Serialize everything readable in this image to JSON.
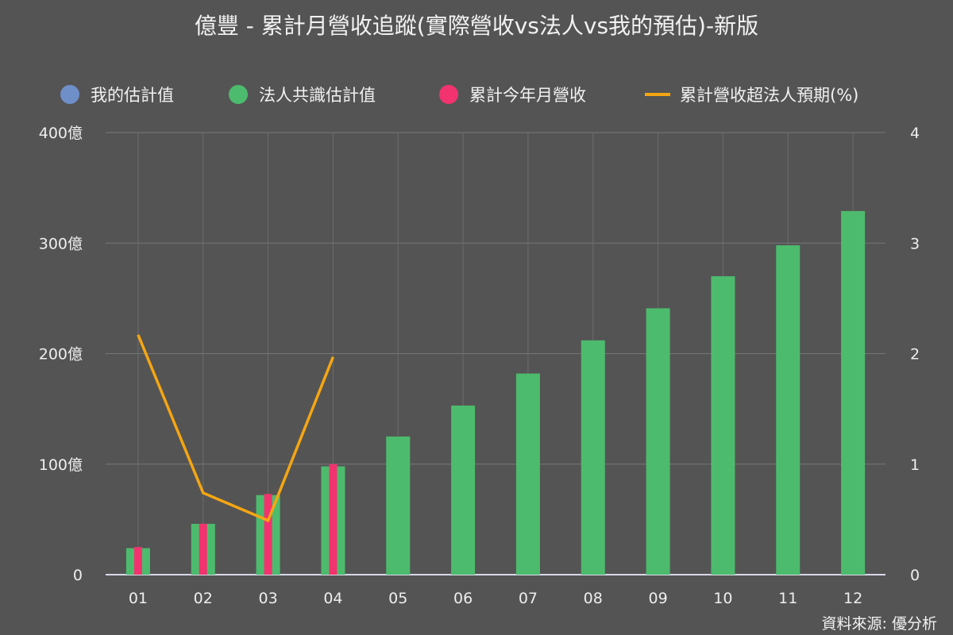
{
  "chart_data": {
    "type": "bar",
    "title": "億豐 - 累計月營收追蹤(實際營收vs法人vs我的預估)-新版",
    "categories": [
      "01",
      "02",
      "03",
      "04",
      "05",
      "06",
      "07",
      "08",
      "09",
      "10",
      "11",
      "12"
    ],
    "series": [
      {
        "name": "我的估計值",
        "type": "bar",
        "axis": "left",
        "values": [
          null,
          null,
          null,
          null,
          null,
          null,
          null,
          null,
          null,
          null,
          null,
          null
        ],
        "color": "#6f8fc9"
      },
      {
        "name": "法人共識估計值",
        "type": "bar",
        "axis": "left",
        "values": [
          24,
          46,
          72,
          98,
          125,
          153,
          182,
          212,
          241,
          270,
          298,
          329
        ],
        "color": "#4dbb6d"
      },
      {
        "name": "累計今年月營收",
        "type": "bar",
        "axis": "left",
        "values": [
          25,
          46,
          73,
          100,
          null,
          null,
          null,
          null,
          null,
          null,
          null,
          null
        ],
        "color": "#f2336f"
      },
      {
        "name": "累計營收超法人預期(%)",
        "type": "line",
        "axis": "right",
        "values": [
          2.17,
          0.74,
          0.49,
          1.97,
          null,
          null,
          null,
          null,
          null,
          null,
          null,
          null
        ],
        "color": "#f5a612"
      }
    ],
    "yaxis_left": {
      "ticks": [
        "0",
        "100億",
        "200億",
        "300億",
        "400億"
      ],
      "range": [
        0,
        400
      ]
    },
    "yaxis_right": {
      "ticks": [
        "0",
        "1",
        "2",
        "3",
        "4"
      ],
      "range": [
        0,
        4
      ]
    },
    "grid": true,
    "legend_position": "top"
  },
  "source_label": "資料來源: 優分析"
}
